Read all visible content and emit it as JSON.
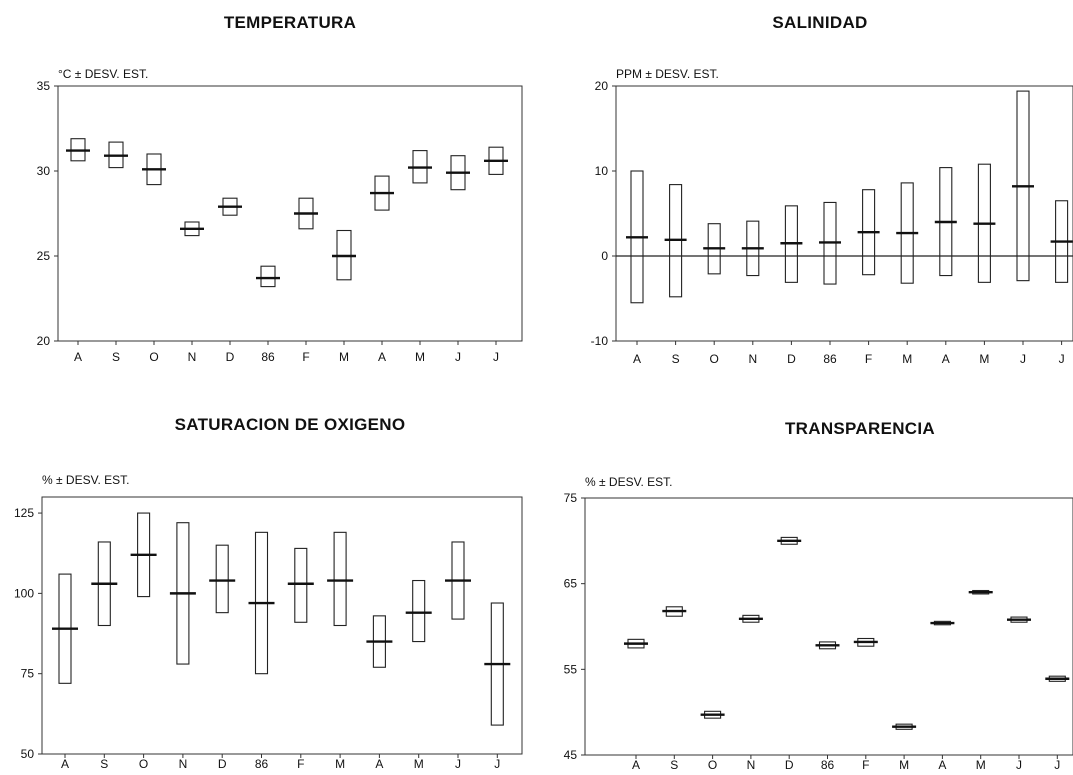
{
  "chart_data": [
    {
      "type": "box",
      "title": "TEMPERATURA",
      "ylabel": "°C ± DESV. EST.",
      "ylim": [
        20,
        35
      ],
      "yticks": [
        20,
        25,
        30,
        35
      ],
      "categories": [
        "A",
        "S",
        "O",
        "N",
        "D",
        "86",
        "F",
        "M",
        "A",
        "M",
        "J",
        "J"
      ],
      "mean": [
        31.2,
        30.9,
        30.1,
        26.6,
        27.9,
        23.7,
        27.5,
        25.0,
        28.7,
        30.2,
        29.9,
        30.6
      ],
      "low": [
        30.6,
        30.2,
        29.2,
        26.2,
        27.4,
        23.2,
        26.6,
        23.6,
        27.7,
        29.3,
        28.9,
        29.8
      ],
      "high": [
        31.9,
        31.7,
        31.0,
        27.0,
        28.4,
        24.4,
        28.4,
        26.5,
        29.7,
        31.2,
        30.9,
        31.4
      ],
      "zero_line": false
    },
    {
      "type": "box",
      "title": "SALINIDAD",
      "ylabel": "PPM ± DESV. EST.",
      "ylim": [
        -10,
        20
      ],
      "yticks": [
        -10,
        0,
        10,
        20
      ],
      "categories": [
        "A",
        "S",
        "O",
        "N",
        "D",
        "86",
        "F",
        "M",
        "A",
        "M",
        "J",
        "J"
      ],
      "mean": [
        2.2,
        1.9,
        0.9,
        0.9,
        1.5,
        1.6,
        2.8,
        2.7,
        4.0,
        3.8,
        8.2,
        1.7
      ],
      "low": [
        -5.5,
        -4.8,
        -2.1,
        -2.3,
        -3.1,
        -3.3,
        -2.2,
        -3.2,
        -2.3,
        -3.1,
        -2.9,
        -3.1
      ],
      "high": [
        10.0,
        8.4,
        3.8,
        4.1,
        5.9,
        6.3,
        7.8,
        8.6,
        10.4,
        10.8,
        19.4,
        6.5
      ],
      "zero_line": true
    },
    {
      "type": "box",
      "title": "SATURACION DE OXIGENO",
      "ylabel": "% ± DESV. EST.",
      "ylim": [
        50,
        130
      ],
      "yticks": [
        50,
        75,
        100,
        125
      ],
      "categories": [
        "A",
        "S",
        "O",
        "N",
        "D",
        "86",
        "F",
        "M",
        "A",
        "M",
        "J",
        "J"
      ],
      "mean": [
        89,
        103,
        112,
        100,
        104,
        97,
        103,
        104,
        85,
        94,
        104,
        78
      ],
      "low": [
        72,
        90,
        99,
        78,
        94,
        75,
        91,
        90,
        77,
        85,
        92,
        59
      ],
      "high": [
        106,
        116,
        125,
        122,
        115,
        119,
        114,
        119,
        93,
        104,
        116,
        97
      ],
      "zero_line": false
    },
    {
      "type": "box",
      "title": "TRANSPARENCIA",
      "ylabel": "% ± DESV. EST.",
      "ylim": [
        45,
        75
      ],
      "yticks": [
        45,
        55,
        65,
        75
      ],
      "categories": [
        "A",
        "S",
        "O",
        "N",
        "D",
        "86",
        "F",
        "M",
        "A",
        "M",
        "J",
        "J"
      ],
      "mean": [
        58.0,
        61.8,
        49.7,
        60.9,
        70.0,
        57.8,
        58.2,
        48.3,
        60.4,
        64.0,
        60.8,
        53.9
      ],
      "low": [
        57.5,
        61.2,
        49.3,
        60.5,
        69.6,
        57.4,
        57.7,
        48.0,
        60.2,
        63.8,
        60.5,
        53.6
      ],
      "high": [
        58.5,
        62.3,
        50.1,
        61.3,
        70.4,
        58.2,
        58.6,
        48.6,
        60.6,
        64.2,
        61.1,
        54.2
      ],
      "zero_line": false
    }
  ]
}
